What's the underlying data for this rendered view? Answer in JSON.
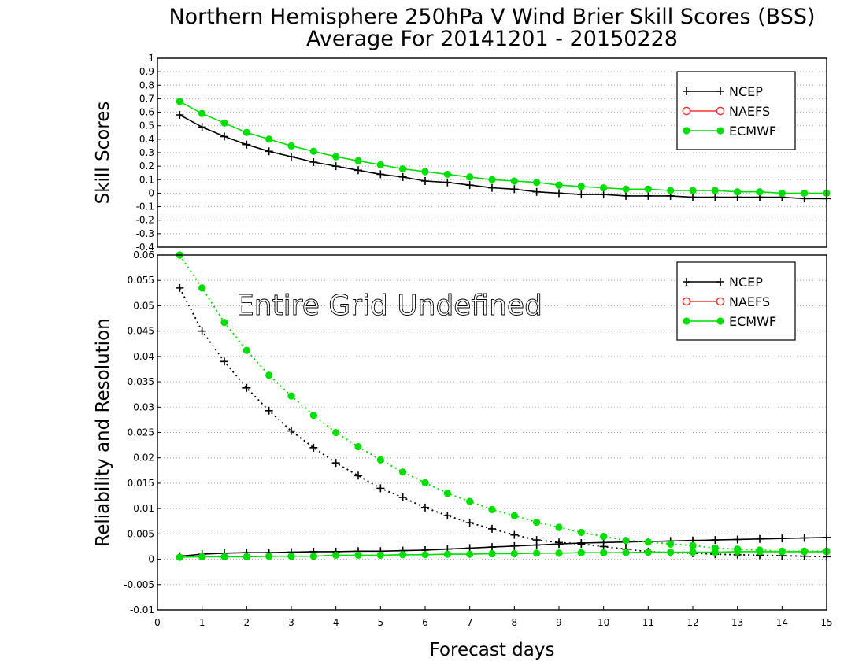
{
  "title_line1": "Northern Hemisphere 250hPa V Wind Brier Skill Scores (BSS)",
  "title_line2": "Average For 20141201 - 20150228",
  "colors": {
    "NCEP": "#000000",
    "NAEFS": "#ff3333",
    "ECMWF": "#00dd00",
    "grid": "#aaaaaa"
  },
  "chart_data": [
    {
      "type": "line",
      "ylabel": "Skill Scores",
      "xlabel": "",
      "xlim": [
        0,
        15
      ],
      "ylim": [
        -0.4,
        1
      ],
      "y_ticks": [
        -0.4,
        -0.3,
        -0.2,
        -0.1,
        0,
        0.1,
        0.2,
        0.3,
        0.4,
        0.5,
        0.6,
        0.7,
        0.8,
        0.9,
        1
      ],
      "y_tick_labels": [
        "-0.4",
        "-0.3",
        "-0.2",
        "-0.1",
        "0",
        "0.1",
        "0.2",
        "0.3",
        "0.4",
        "0.5",
        "0.6",
        "0.7",
        "0.8",
        "0.9",
        "1"
      ],
      "grid": "horizontal-dotted",
      "legend": {
        "placement": "top-right",
        "entries": [
          "NCEP",
          "NAEFS",
          "ECMWF"
        ]
      },
      "x": [
        0.5,
        1,
        1.5,
        2,
        2.5,
        3,
        3.5,
        4,
        4.5,
        5,
        5.5,
        6,
        6.5,
        7,
        7.5,
        8,
        8.5,
        9,
        9.5,
        10,
        10.5,
        11,
        11.5,
        12,
        12.5,
        13,
        13.5,
        14,
        14.5,
        15
      ],
      "series": [
        {
          "name": "NCEP",
          "marker": "plus",
          "line": "solid",
          "values": [
            0.58,
            0.49,
            0.42,
            0.36,
            0.31,
            0.27,
            0.23,
            0.2,
            0.17,
            0.14,
            0.12,
            0.09,
            0.08,
            0.06,
            0.04,
            0.03,
            0.01,
            0.0,
            -0.01,
            -0.01,
            -0.02,
            -0.02,
            -0.02,
            -0.03,
            -0.03,
            -0.03,
            -0.03,
            -0.03,
            -0.04,
            -0.04
          ]
        },
        {
          "name": "ECMWF",
          "marker": "filled-circle",
          "line": "solid",
          "values": [
            0.68,
            0.59,
            0.52,
            0.45,
            0.4,
            0.35,
            0.31,
            0.27,
            0.24,
            0.21,
            0.18,
            0.16,
            0.14,
            0.12,
            0.1,
            0.09,
            0.08,
            0.06,
            0.05,
            0.04,
            0.03,
            0.03,
            0.02,
            0.02,
            0.02,
            0.01,
            0.01,
            0.0,
            0.0,
            0.0
          ]
        }
      ]
    },
    {
      "type": "line",
      "ylabel": "Reliability and Resolution",
      "xlabel": "Forecast days",
      "xlim": [
        0,
        15
      ],
      "ylim": [
        -0.01,
        0.06
      ],
      "x_ticks": [
        0,
        1,
        2,
        3,
        4,
        5,
        6,
        7,
        8,
        9,
        10,
        11,
        12,
        13,
        14,
        15
      ],
      "x_tick_labels": [
        "0",
        "1",
        "2",
        "3",
        "4",
        "5",
        "6",
        "7",
        "8",
        "9",
        "10",
        "11",
        "12",
        "13",
        "14",
        "15"
      ],
      "y_ticks": [
        -0.01,
        -0.005,
        0,
        0.005,
        0.01,
        0.015,
        0.02,
        0.025,
        0.03,
        0.035,
        0.04,
        0.045,
        0.05,
        0.055,
        0.06
      ],
      "y_tick_labels": [
        "-0.01",
        "-0.005",
        "0",
        "0.005",
        "0.01",
        "0.015",
        "0.02",
        "0.025",
        "0.03",
        "0.035",
        "0.04",
        "0.045",
        "0.05",
        "0.055",
        "0.06"
      ],
      "grid": "horizontal-dotted",
      "legend": {
        "placement": "top-right",
        "entries": [
          "NCEP",
          "NAEFS",
          "ECMWF"
        ]
      },
      "annotation": "Entire Grid Undefined",
      "x": [
        0.5,
        1,
        1.5,
        2,
        2.5,
        3,
        3.5,
        4,
        4.5,
        5,
        5.5,
        6,
        6.5,
        7,
        7.5,
        8,
        8.5,
        9,
        9.5,
        10,
        10.5,
        11,
        11.5,
        12,
        12.5,
        13,
        13.5,
        14,
        14.5,
        15
      ],
      "series": [
        {
          "name": "NCEP",
          "component": "reliability",
          "marker": "plus",
          "line": "solid",
          "values": [
            0.0006,
            0.001,
            0.0012,
            0.0013,
            0.0013,
            0.0014,
            0.0015,
            0.0015,
            0.0016,
            0.0016,
            0.0017,
            0.0018,
            0.002,
            0.0022,
            0.0024,
            0.0026,
            0.0028,
            0.003,
            0.0032,
            0.0033,
            0.0034,
            0.0035,
            0.0036,
            0.0037,
            0.0038,
            0.0039,
            0.004,
            0.0041,
            0.0042,
            0.0043
          ]
        },
        {
          "name": "NCEP",
          "component": "resolution",
          "marker": "plus",
          "line": "dotted",
          "values": [
            0.0535,
            0.045,
            0.039,
            0.0338,
            0.0293,
            0.0253,
            0.022,
            0.019,
            0.0165,
            0.014,
            0.0122,
            0.0102,
            0.0086,
            0.0072,
            0.006,
            0.0048,
            0.0038,
            0.0033,
            0.003,
            0.0025,
            0.002,
            0.0015,
            0.0013,
            0.0012,
            0.001,
            0.0009,
            0.0008,
            0.0007,
            0.0006,
            0.0005
          ]
        },
        {
          "name": "ECMWF",
          "component": "reliability",
          "marker": "filled-circle",
          "line": "solid",
          "values": [
            0.0004,
            0.0005,
            0.0005,
            0.0005,
            0.0006,
            0.0006,
            0.0006,
            0.0008,
            0.0008,
            0.0008,
            0.0009,
            0.0009,
            0.001,
            0.001,
            0.0011,
            0.0011,
            0.0012,
            0.0012,
            0.0013,
            0.0013,
            0.0013,
            0.0014,
            0.0014,
            0.0014,
            0.0014,
            0.0015,
            0.0015,
            0.0015,
            0.0015,
            0.0015
          ]
        },
        {
          "name": "ECMWF",
          "component": "resolution",
          "marker": "filled-circle",
          "line": "dotted",
          "values": [
            0.06,
            0.0535,
            0.0467,
            0.0412,
            0.0363,
            0.0322,
            0.0284,
            0.025,
            0.0222,
            0.0196,
            0.0172,
            0.0151,
            0.013,
            0.0114,
            0.0098,
            0.0086,
            0.0073,
            0.0063,
            0.0053,
            0.0045,
            0.0037,
            0.0034,
            0.003,
            0.0027,
            0.0022,
            0.002,
            0.0018,
            0.0016,
            0.0016,
            0.0016
          ]
        }
      ]
    }
  ]
}
